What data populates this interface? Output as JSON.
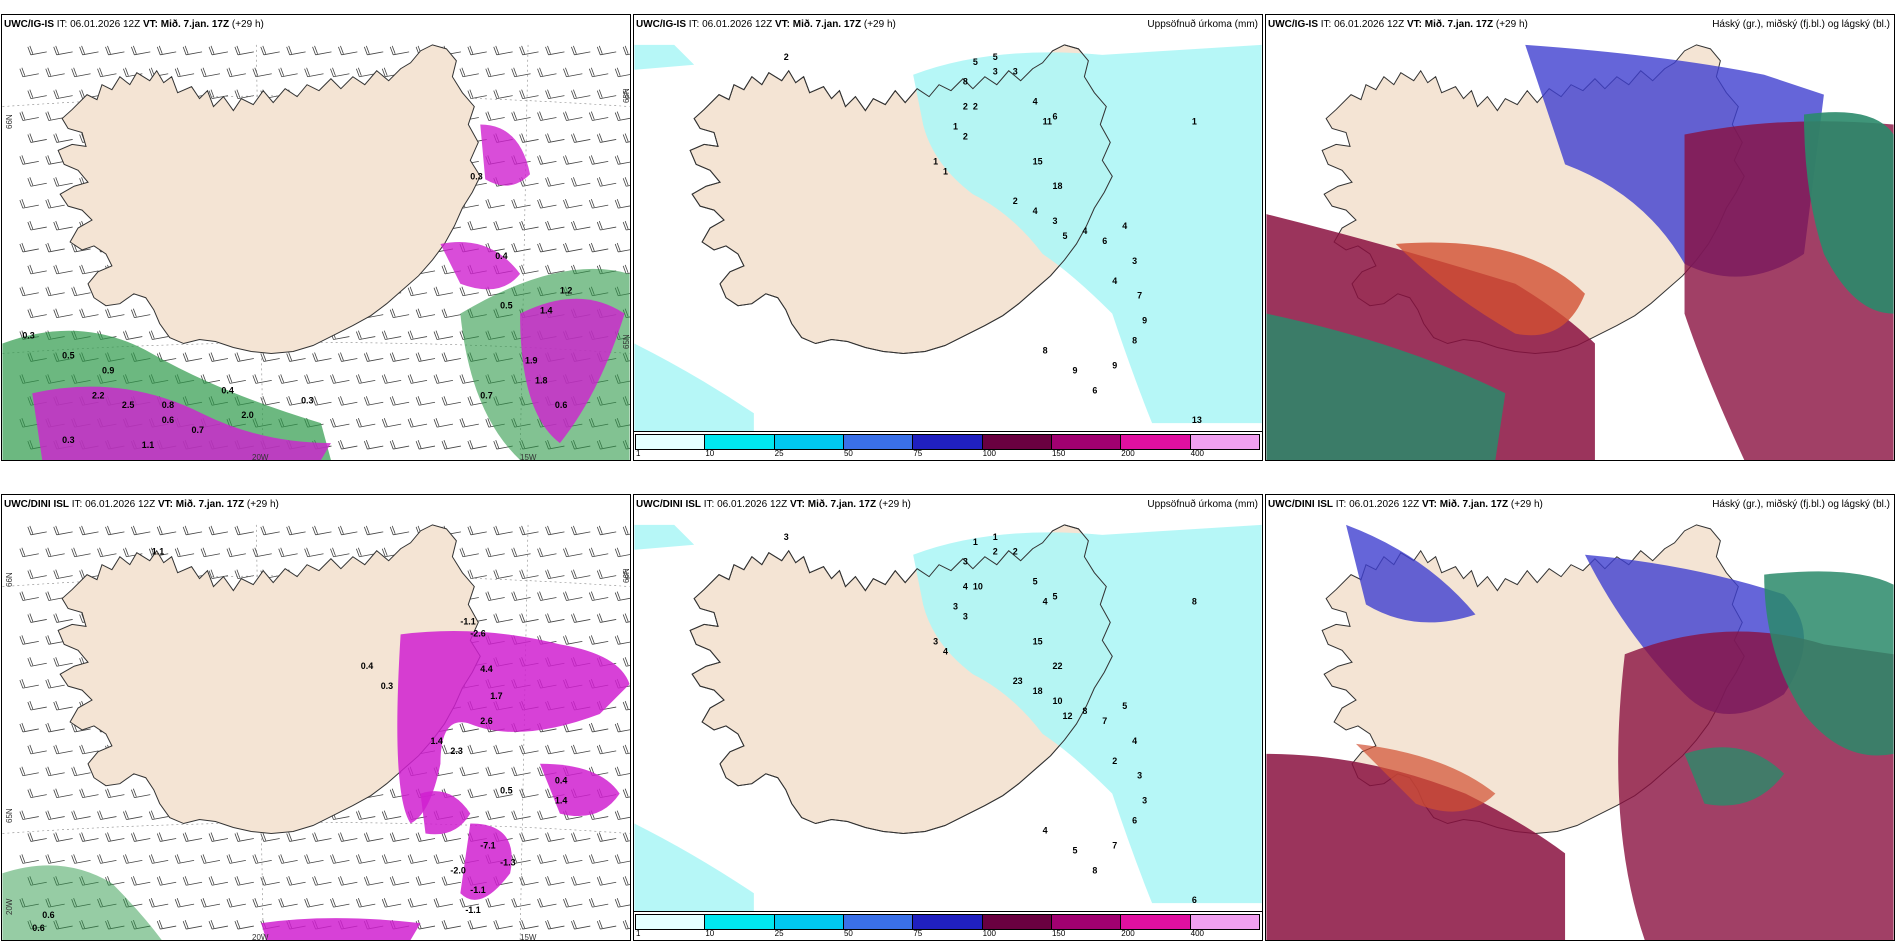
{
  "colors": {
    "land": "#f4e4d4",
    "sea": "#ffffff",
    "precip_light": "#aef6f6",
    "magenta": "#d020d0",
    "green": "#2e9a4a",
    "dark_red": "#8a1040",
    "blue": "#3f3fd0",
    "orange_red": "#d25032",
    "teal": "#2a8a6a",
    "colorbar": [
      "#e4ffff",
      "#00e8f0",
      "#00c8f0",
      "#3a70e8",
      "#2020c0",
      "#6a0040",
      "#a00070",
      "#e010a0",
      "#f0a0f0"
    ]
  },
  "rows": [
    {
      "model": "UWC/IG-IS",
      "panels": [
        {
          "type": "temp",
          "title_model": "UWC/IG-IS",
          "title_it": "IT: 06.01.2026 12Z",
          "title_vt_label": "VT:",
          "title_vt": "Mið. 7.jan. 17Z",
          "title_lead": "(+29 h)",
          "right_label": "",
          "lat_label": "66N",
          "lat_label2": "65N",
          "lon_label": "20W",
          "lon_label2": "15W",
          "values": [
            "0.3",
            "0.5",
            "0.9",
            "2.2",
            "2.5",
            "0.8",
            "0.6",
            "0.7",
            "1.1",
            "0.3",
            "0.4",
            "2.0",
            "0.3",
            "0.7",
            "1.9",
            "1.8",
            "1.4",
            "1.2",
            "0.6",
            "0.5",
            "0.4",
            "0.3"
          ]
        },
        {
          "type": "precip",
          "title_model": "UWC/IG-IS",
          "title_it": "IT: 06.01.2026 12Z",
          "title_vt_label": "VT:",
          "title_vt": "Mið. 7.jan. 17Z",
          "title_lead": "(+29 h)",
          "right_label": "Uppsöfnuð úrkoma (mm)",
          "values": [
            "2",
            "5",
            "3",
            "5",
            "3",
            "8",
            "2",
            "1",
            "2",
            "1",
            "1",
            "4",
            "11",
            "6",
            "15",
            "18",
            "2",
            "4",
            "3",
            "5",
            "4",
            "6",
            "4",
            "3",
            "4",
            "7",
            "9",
            "8",
            "9",
            "6",
            "9",
            "8",
            "13",
            "1",
            "2"
          ]
        },
        {
          "type": "cloud",
          "title_model": "UWC/IG-IS",
          "title_it": "IT: 06.01.2026 12Z",
          "title_vt_label": "VT:",
          "title_vt": "Mið. 7.jan. 17Z",
          "title_lead": "(+29 h)",
          "right_label": "Háský (gr.), miðský (fj.bl.) og lágský (bl.)"
        }
      ]
    },
    {
      "model": "UWC/DINI ISL",
      "panels": [
        {
          "type": "temp",
          "title_model": "UWC/DINI ISL",
          "title_it": "IT: 06.01.2026 12Z",
          "title_vt_label": "VT:",
          "title_vt": "Mið. 7.jan. 17Z",
          "title_lead": "(+29 h)",
          "right_label": "",
          "lat_label": "66N",
          "lat_label2": "65N",
          "lon_label": "20W",
          "lon_label2": "15W",
          "values": [
            "1.1",
            "-1.1",
            "-2.6",
            "0.4",
            "0.3",
            "4.4",
            "1.7",
            "2.6",
            "1.4",
            "2.3",
            "-7.1",
            "-1.3",
            "-2.0",
            "-1.1",
            "-1.1",
            "0.6",
            "0.6",
            "0.4",
            "1.4",
            "0.5"
          ]
        },
        {
          "type": "precip",
          "title_model": "UWC/DINI ISL",
          "title_it": "IT: 06.01.2026 12Z",
          "title_vt_label": "VT:",
          "title_vt": "Mið. 7.jan. 17Z",
          "title_lead": "(+29 h)",
          "right_label": "Uppsöfnuð úrkoma (mm)",
          "values": [
            "3",
            "1",
            "2",
            "1",
            "2",
            "3",
            "4",
            "3",
            "3",
            "3",
            "4",
            "5",
            "4",
            "5",
            "15",
            "22",
            "23",
            "18",
            "10",
            "12",
            "8",
            "7",
            "5",
            "4",
            "2",
            "3",
            "3",
            "6",
            "7",
            "8",
            "5",
            "4",
            "6",
            "8",
            "10"
          ]
        },
        {
          "type": "cloud",
          "title_model": "UWC/DINI ISL",
          "title_it": "IT: 06.01.2026 12Z",
          "title_vt_label": "VT:",
          "title_vt": "Mið. 7.jan. 17Z",
          "title_lead": "(+29 h)",
          "right_label": "Háský (gr.), miðský (fj.bl.) og lágský (bl.)"
        }
      ]
    }
  ],
  "colorbar_labels": [
    "1",
    "10",
    "25",
    "50",
    "75",
    "100",
    "150",
    "200",
    "400"
  ]
}
